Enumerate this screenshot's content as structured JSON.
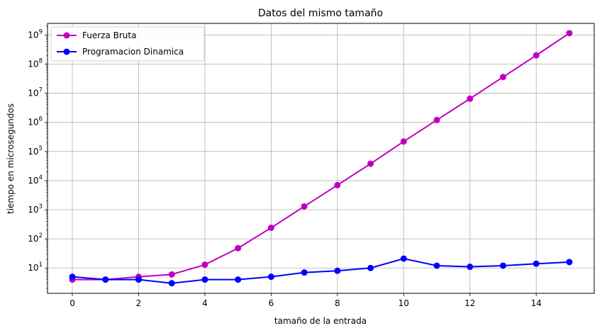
{
  "chart_data": {
    "type": "line",
    "title": "Datos del mismo tamaño",
    "xlabel": "tamaño de la entrada",
    "ylabel": "tiempo en microsegundos",
    "x": [
      0,
      1,
      2,
      3,
      4,
      5,
      6,
      7,
      8,
      9,
      10,
      11,
      12,
      13,
      14,
      15
    ],
    "xlim": [
      -0.75,
      15.75
    ],
    "ylim": [
      1.35,
      2500000000
    ],
    "yscale": "log",
    "grid": true,
    "legend_position": "upper-left",
    "x_ticks": [
      0,
      2,
      4,
      6,
      8,
      10,
      12,
      14
    ],
    "y_ticks": [
      {
        "exp": 1,
        "base": "10",
        "power": "1"
      },
      {
        "exp": 2,
        "base": "10",
        "power": "2"
      },
      {
        "exp": 3,
        "base": "10",
        "power": "3"
      },
      {
        "exp": 4,
        "base": "10",
        "power": "4"
      },
      {
        "exp": 5,
        "base": "10",
        "power": "5"
      },
      {
        "exp": 6,
        "base": "10",
        "power": "6"
      },
      {
        "exp": 7,
        "base": "10",
        "power": "7"
      },
      {
        "exp": 8,
        "base": "10",
        "power": "8"
      },
      {
        "exp": 9,
        "base": "10",
        "power": "9"
      }
    ],
    "series": [
      {
        "name": "Fuerza Bruta",
        "color": "#bf00bf",
        "values": [
          4,
          4,
          5,
          6,
          13,
          48,
          240,
          1300,
          7000,
          38000,
          220000,
          1200000,
          6500000,
          36000000,
          200000000,
          1150000000
        ]
      },
      {
        "name": "Programacion Dinamica",
        "color": "#0000ff",
        "values": [
          5,
          4,
          4,
          3,
          4,
          4,
          5,
          7,
          8,
          10,
          21,
          12,
          11,
          12,
          14,
          16
        ]
      }
    ]
  }
}
